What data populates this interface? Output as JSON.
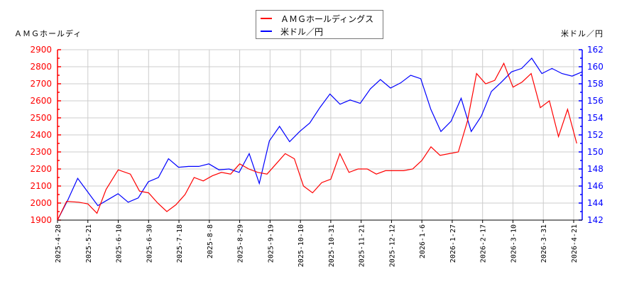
{
  "legend": {
    "items": [
      {
        "label": "ＡＭＧホールディングス",
        "color": "#ff0000"
      },
      {
        "label": "米ドル／円",
        "color": "#0000ff"
      }
    ]
  },
  "axes": {
    "left_title": "ＡＭＧホールディ",
    "right_title": "米ドル／円"
  },
  "chart_data": {
    "type": "line",
    "title": "",
    "legend_position": "top-center",
    "grid": true,
    "x_tick_labels": [
      "2025-4-28",
      "2025-5-21",
      "2025-6-10",
      "2025-6-30",
      "2025-7-18",
      "2025-8-8",
      "2025-8-29",
      "2025-9-19",
      "2025-10-10",
      "2025-10-31",
      "2025-11-21",
      "2025-12-12",
      "2026-1-6",
      "2026-1-27",
      "2026-2-17",
      "2026-3-10",
      "2026-3-31",
      "2026-4-21"
    ],
    "y_left": {
      "label": "ＡＭＧホールディ",
      "range": [
        1900,
        2900
      ],
      "ticks": [
        1900,
        2000,
        2100,
        2200,
        2300,
        2400,
        2500,
        2600,
        2700,
        2800,
        2900
      ],
      "color": "#ff0000"
    },
    "y_right": {
      "label": "米ドル／円",
      "range": [
        142,
        162
      ],
      "ticks": [
        142,
        144,
        146,
        148,
        150,
        152,
        154,
        156,
        158,
        160,
        162
      ],
      "color": "#0000ff"
    },
    "series": [
      {
        "name": "ＡＭＧホールディングス",
        "axis": "left",
        "color": "#ff0000",
        "x_index": [
          0,
          0.3,
          0.7,
          1,
          1.3,
          1.6,
          2,
          2.4,
          2.7,
          3,
          3.3,
          3.6,
          3.9,
          4.2,
          4.5,
          4.8,
          5.1,
          5.4,
          5.7,
          6,
          6.3,
          6.6,
          6.9,
          7.2,
          7.5,
          7.8,
          8.1,
          8.4,
          8.7,
          9,
          9.3,
          9.6,
          9.9,
          10.2,
          10.5,
          10.8,
          11.1,
          11.4,
          11.7,
          12,
          12.3,
          12.6,
          12.9,
          13.2,
          13.5,
          13.8,
          14.1,
          14.4,
          14.7,
          15,
          15.3,
          15.6,
          15.9,
          16.2,
          16.5,
          16.8,
          17.1
        ],
        "values": [
          1900,
          2010,
          2005,
          1995,
          1940,
          2080,
          2195,
          2170,
          2070,
          2060,
          2000,
          1950,
          1990,
          2050,
          2150,
          2130,
          2160,
          2180,
          2170,
          2230,
          2200,
          2180,
          2170,
          2230,
          2290,
          2260,
          2100,
          2060,
          2120,
          2140,
          2290,
          2180,
          2200,
          2200,
          2170,
          2190,
          2190,
          2190,
          2200,
          2250,
          2330,
          2280,
          2290,
          2300,
          2480,
          2760,
          2700,
          2720,
          2820,
          2680,
          2710,
          2760,
          2560,
          2600,
          2390,
          2550,
          2350
        ],
        "y_estimated_samples": [
          1910,
          2010,
          2000,
          1980,
          1940,
          2050,
          2200,
          2150,
          2060,
          2050,
          2010,
          1960,
          2000,
          2060,
          2160,
          2130,
          2150,
          2190,
          2170,
          2220,
          2200,
          2180,
          2170,
          2220,
          2290,
          2250,
          2110,
          2070,
          2110,
          2150,
          2290,
          2190,
          2200,
          2200,
          2170,
          2190,
          2190,
          2200,
          2200,
          2260,
          2340,
          2290,
          2290,
          2300,
          2480,
          2780,
          2700,
          2720,
          2830,
          2680,
          2710,
          2770,
          2560,
          2610,
          2390,
          2550,
          2350
        ]
      },
      {
        "name": "米ドル／円",
        "axis": "right",
        "color": "#0000ff",
        "values": [
          142.0,
          144.3,
          146.9,
          145.3,
          143.7,
          144.4,
          145.1,
          144.1,
          144.6,
          146.5,
          147.0,
          149.2,
          148.2,
          148.3,
          148.3,
          148.6,
          147.9,
          148.0,
          147.6,
          149.8,
          146.3,
          151.3,
          153.0,
          151.2,
          152.4,
          153.4,
          155.2,
          156.8,
          155.6,
          156.1,
          155.7,
          157.4,
          158.5,
          157.5,
          158.1,
          159.0,
          158.6,
          155.0,
          152.4,
          153.6,
          156.3,
          152.4,
          154.2,
          157.1,
          158.2,
          159.4,
          159.8,
          161.0,
          159.2,
          159.8,
          159.2,
          158.9,
          159.4
        ]
      }
    ]
  }
}
